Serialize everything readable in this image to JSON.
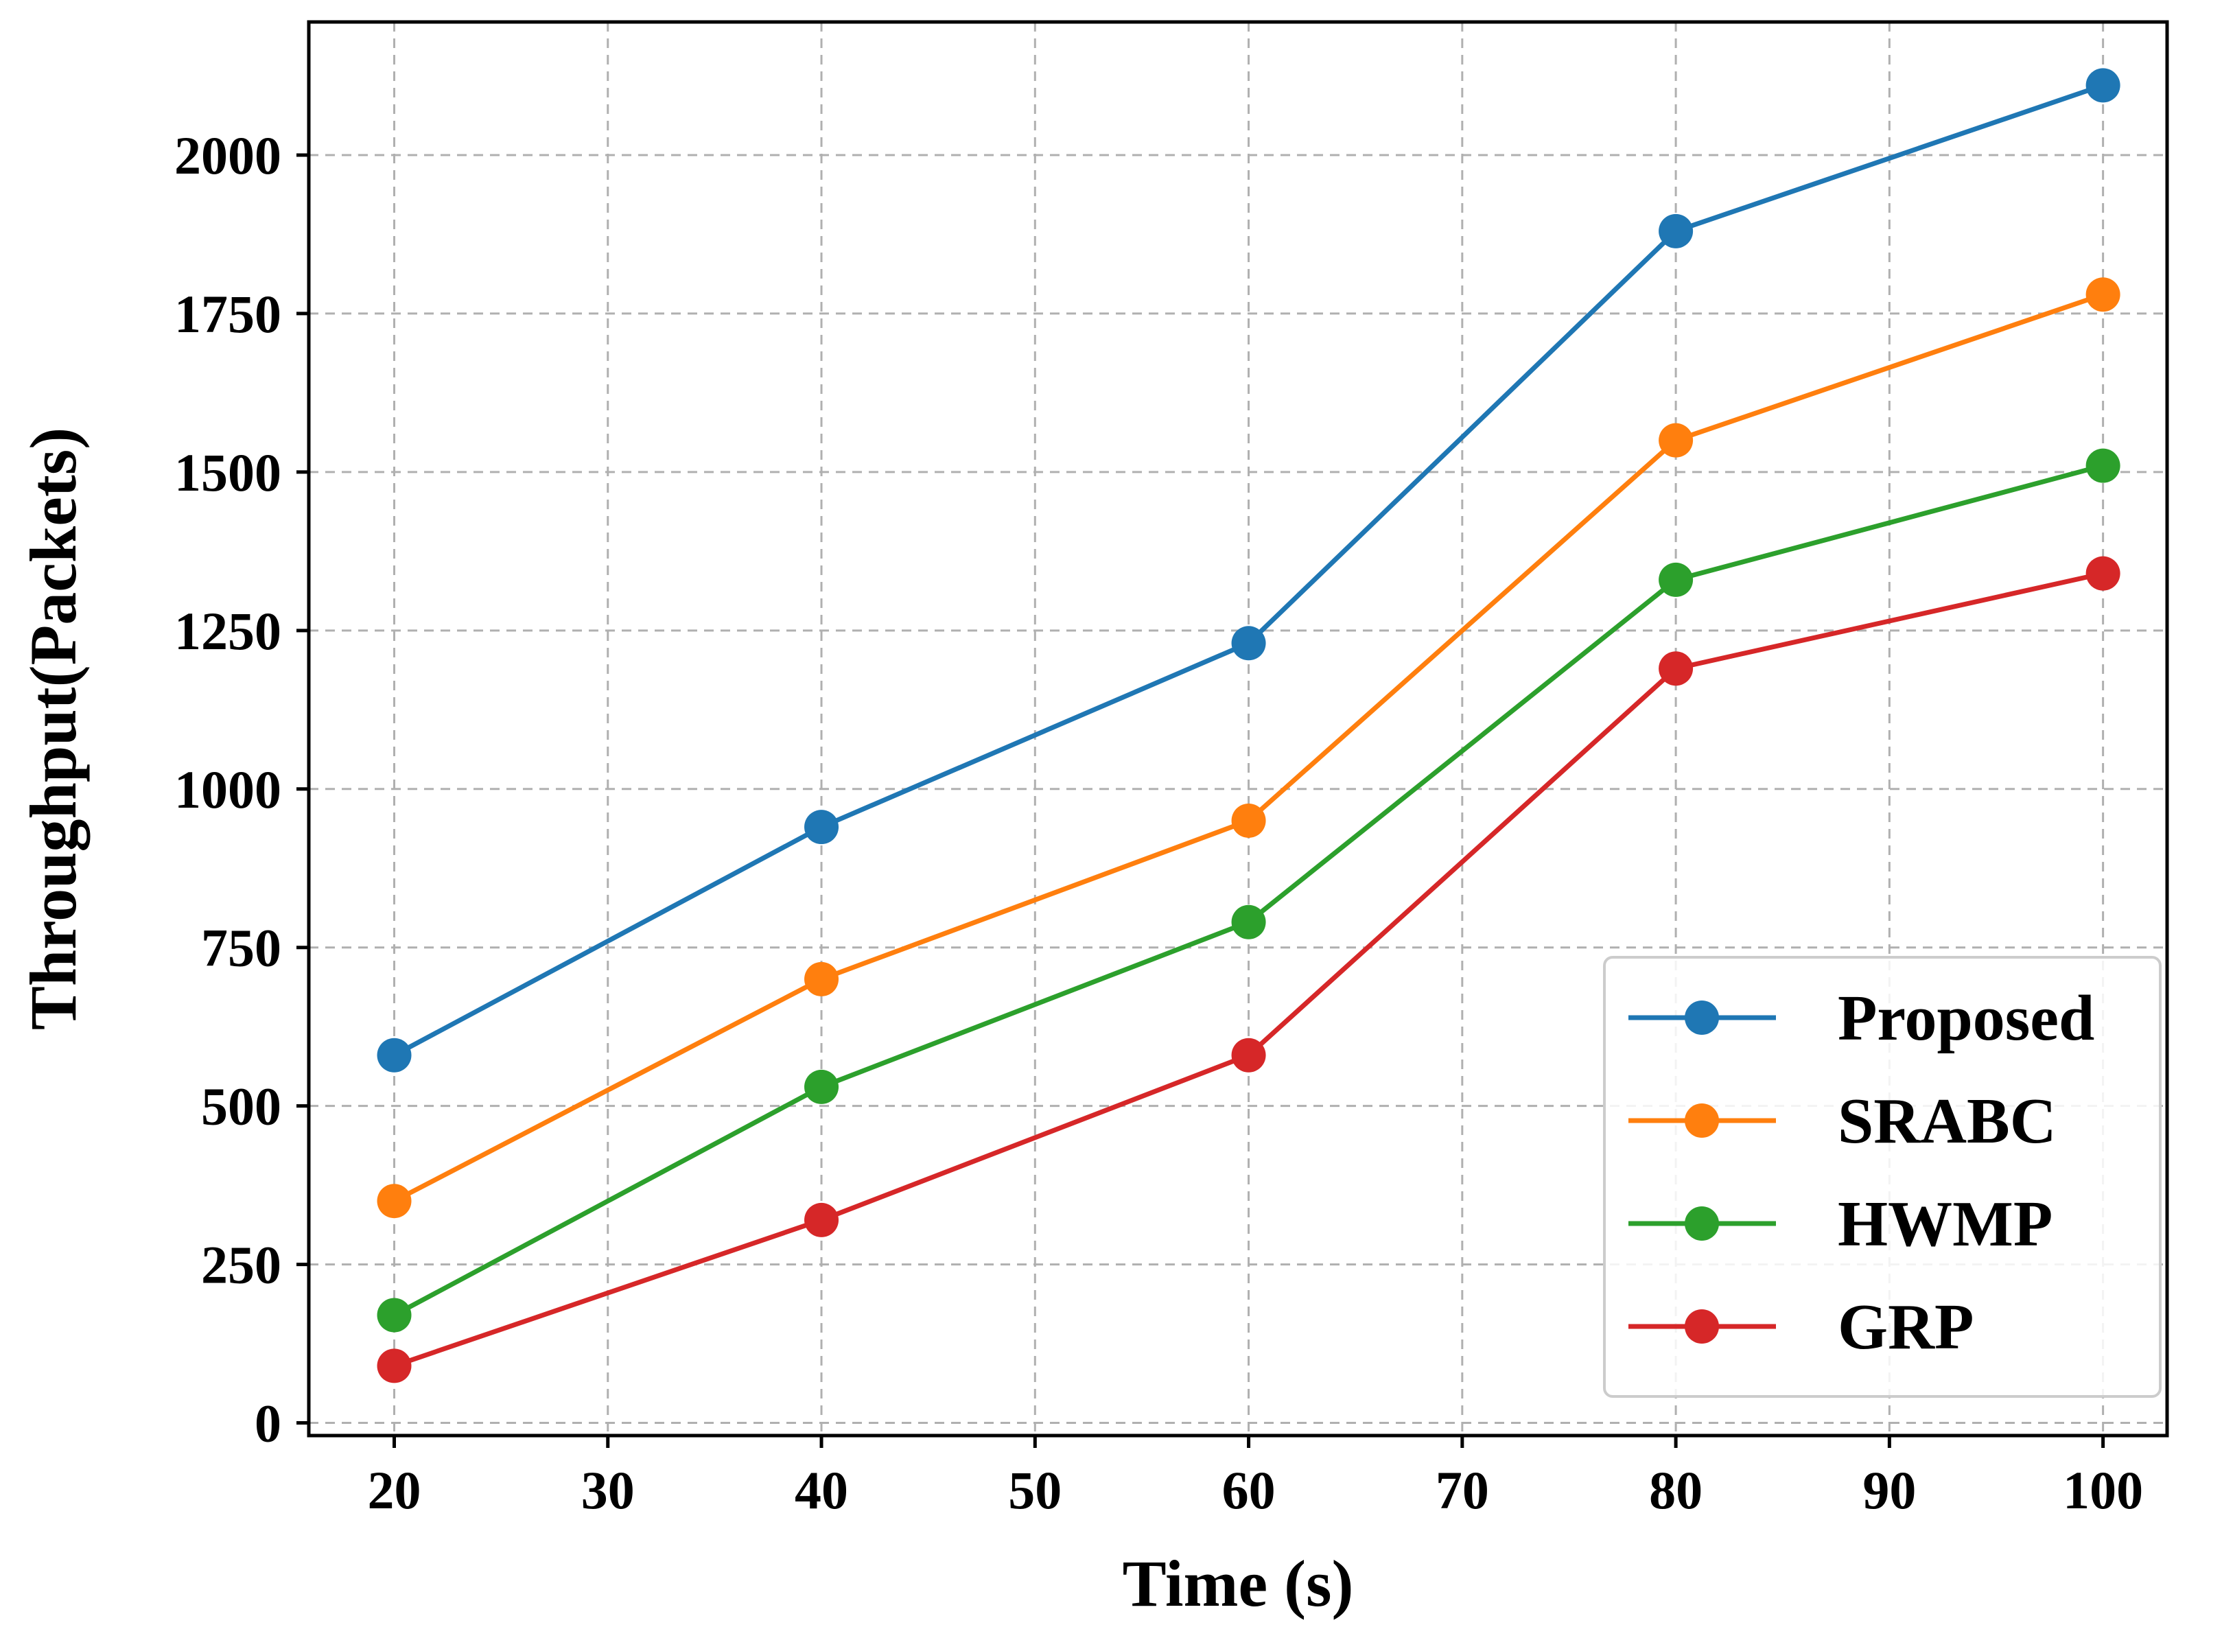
{
  "chart_data": {
    "type": "line",
    "title": "",
    "xlabel": "Time (s)",
    "ylabel": "Throughput(Packets)",
    "x": [
      20,
      40,
      60,
      80,
      100
    ],
    "xlim": [
      16,
      103
    ],
    "ylim": [
      -20,
      2210
    ],
    "xticks": [
      20,
      30,
      40,
      50,
      60,
      70,
      80,
      90,
      100
    ],
    "yticks": [
      0,
      250,
      500,
      750,
      1000,
      1250,
      1500,
      1750,
      2000
    ],
    "grid": true,
    "legend_position": "lower-right",
    "series": [
      {
        "name": "Proposed",
        "color": "#1f77b4",
        "values": [
          580,
          940,
          1230,
          1880,
          2110
        ]
      },
      {
        "name": "SRABC",
        "color": "#ff7f0e",
        "values": [
          350,
          700,
          950,
          1550,
          1780
        ]
      },
      {
        "name": "HWMP",
        "color": "#2ca02c",
        "values": [
          170,
          530,
          790,
          1330,
          1510
        ]
      },
      {
        "name": "GRP",
        "color": "#d62728",
        "values": [
          90,
          320,
          580,
          1190,
          1340
        ]
      }
    ]
  }
}
